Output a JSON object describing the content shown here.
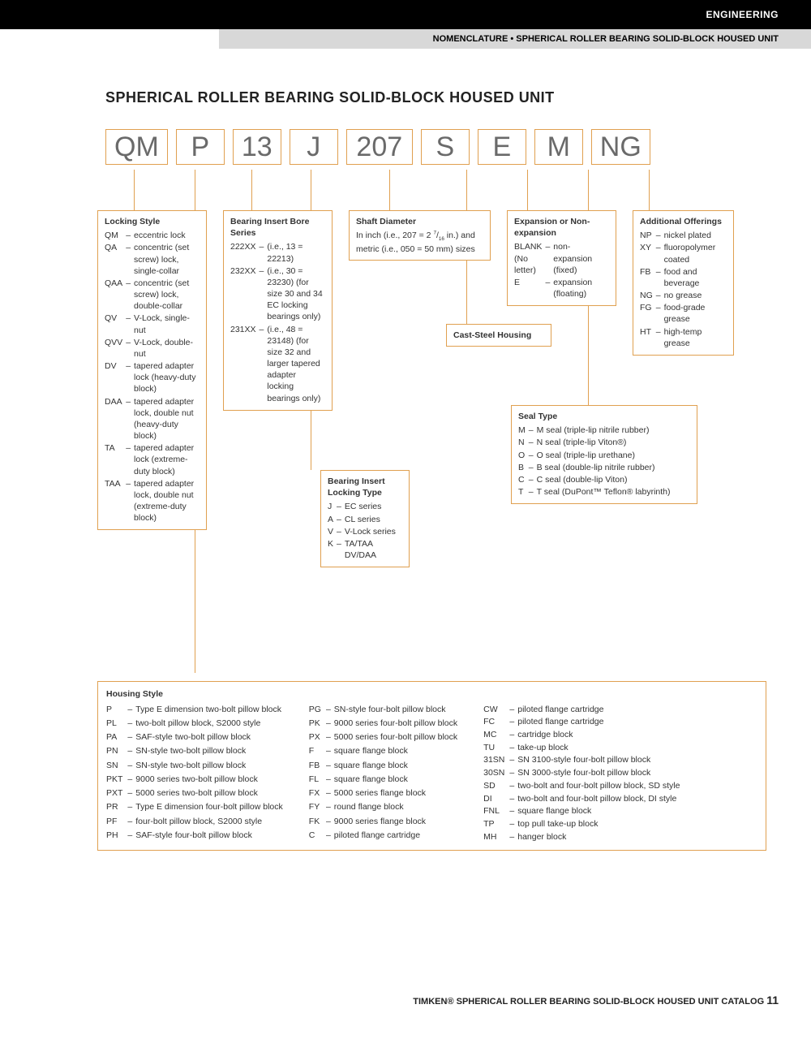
{
  "header": {
    "category": "ENGINEERING",
    "subtitle": "NOMENCLATURE • SPHERICAL ROLLER BEARING SOLID-BLOCK HOUSED UNIT"
  },
  "title": "SPHERICAL ROLLER BEARING SOLID-BLOCK HOUSED UNIT",
  "code_parts": [
    "QM",
    "P",
    "13",
    "J",
    "207",
    "S",
    "E",
    "M",
    "NG"
  ],
  "colors": {
    "box_border": "#e0a050",
    "code_text": "#6a6a6a",
    "black": "#000000",
    "gray_bar": "#d8d8d8"
  },
  "locking_style": {
    "title": "Locking Style",
    "items": [
      {
        "code": "QM",
        "desc": "eccentric lock"
      },
      {
        "code": "QA",
        "desc": "concentric (set screw) lock, single-collar"
      },
      {
        "code": "QAA",
        "desc": "concentric (set screw) lock, double-collar"
      },
      {
        "code": "QV",
        "desc": "V-Lock, single-nut"
      },
      {
        "code": "QVV",
        "desc": "V-Lock, double-nut"
      },
      {
        "code": "DV",
        "desc": "tapered adapter lock (heavy-duty block)"
      },
      {
        "code": "DAA",
        "desc": "tapered adapter lock, double nut (heavy-duty block)"
      },
      {
        "code": "TA",
        "desc": "tapered adapter lock (extreme-duty block)"
      },
      {
        "code": "TAA",
        "desc": "tapered adapter lock, double nut (extreme-duty block)"
      }
    ]
  },
  "bore_series": {
    "title": "Bearing Insert Bore Series",
    "items": [
      {
        "code": "222XX",
        "desc": "(i.e., 13 = 22213)"
      },
      {
        "code": "232XX",
        "desc": "(i.e., 30 = 23230) (for size 30 and 34 EC locking bearings only)"
      },
      {
        "code": "231XX",
        "desc": "(i.e., 48 = 23148) (for size 32 and larger tapered adapter locking bearings only)"
      }
    ]
  },
  "locking_type": {
    "title": "Bearing Insert Locking Type",
    "items": [
      {
        "code": "J",
        "desc": "EC series"
      },
      {
        "code": "A",
        "desc": "CL series"
      },
      {
        "code": "V",
        "desc": "V-Lock series"
      },
      {
        "code": "K",
        "desc": "TA/TAA DV/DAA"
      }
    ]
  },
  "shaft_diameter": {
    "title": "Shaft Diameter",
    "desc": "In inch (i.e., 207 = 2 7/16 in.) and metric (i.e., 050 = 50 mm) sizes"
  },
  "cast_steel": "Cast-Steel Housing",
  "expansion": {
    "title": "Expansion or Non-expansion",
    "items": [
      {
        "code": "BLANK (No letter)",
        "desc": "non-expansion (fixed)"
      },
      {
        "code": "E",
        "desc": "expansion (floating)"
      }
    ]
  },
  "seal_type": {
    "title": "Seal Type",
    "items": [
      {
        "code": "M",
        "desc": "M seal (triple-lip nitrile rubber)"
      },
      {
        "code": "N",
        "desc": "N seal (triple-lip Viton®)"
      },
      {
        "code": "O",
        "desc": "O seal (triple-lip urethane)"
      },
      {
        "code": "B",
        "desc": "B seal (double-lip nitrile rubber)"
      },
      {
        "code": "C",
        "desc": "C seal (double-lip Viton)"
      },
      {
        "code": "T",
        "desc": "T seal (DuPont™ Teflon® labyrinth)"
      }
    ]
  },
  "additional": {
    "title": "Additional Offerings",
    "items": [
      {
        "code": "NP",
        "desc": "nickel plated"
      },
      {
        "code": "XY",
        "desc": "fluoropolymer coated"
      },
      {
        "code": "FB",
        "desc": "food and beverage"
      },
      {
        "code": "NG",
        "desc": "no grease"
      },
      {
        "code": "FG",
        "desc": "food-grade grease"
      },
      {
        "code": "HT",
        "desc": "high-temp grease"
      }
    ]
  },
  "housing": {
    "title": "Housing Style",
    "col1": [
      {
        "code": "P",
        "desc": "Type E dimension two-bolt pillow block"
      },
      {
        "code": "PL",
        "desc": "two-bolt pillow block, S2000 style"
      },
      {
        "code": "PA",
        "desc": "SAF-style two-bolt pillow block"
      },
      {
        "code": "PN",
        "desc": "SN-style two-bolt pillow block"
      },
      {
        "code": "SN",
        "desc": "SN-style two-bolt pillow block"
      },
      {
        "code": "PKT",
        "desc": "9000 series two-bolt pillow block"
      },
      {
        "code": "PXT",
        "desc": "5000 series two-bolt pillow block"
      },
      {
        "code": "PR",
        "desc": "Type E dimension four-bolt pillow block"
      },
      {
        "code": "PF",
        "desc": "four-bolt pillow block, S2000 style"
      },
      {
        "code": "PH",
        "desc": "SAF-style four-bolt pillow block"
      }
    ],
    "col2": [
      {
        "code": "PG",
        "desc": "SN-style four-bolt pillow block"
      },
      {
        "code": "PK",
        "desc": "9000 series four-bolt pillow block"
      },
      {
        "code": "PX",
        "desc": "5000 series four-bolt pillow block"
      },
      {
        "code": "F",
        "desc": "square flange block"
      },
      {
        "code": "FB",
        "desc": "square flange block"
      },
      {
        "code": "FL",
        "desc": "square flange block"
      },
      {
        "code": "FX",
        "desc": "5000 series flange block"
      },
      {
        "code": "FY",
        "desc": "round flange block"
      },
      {
        "code": "FK",
        "desc": "9000 series flange block"
      },
      {
        "code": "C",
        "desc": "piloted flange cartridge"
      }
    ],
    "col3": [
      {
        "code": "CW",
        "desc": "piloted flange cartridge"
      },
      {
        "code": "FC",
        "desc": "piloted flange cartridge"
      },
      {
        "code": "MC",
        "desc": "cartridge block"
      },
      {
        "code": "TU",
        "desc": "take-up block"
      },
      {
        "code": "31SN",
        "desc": "SN 3100-style four-bolt pillow block"
      },
      {
        "code": "30SN",
        "desc": "SN 3000-style four-bolt pillow block"
      },
      {
        "code": "SD",
        "desc": "two-bolt and four-bolt pillow block, SD style"
      },
      {
        "code": "DI",
        "desc": "two-bolt and four-bolt pillow block, DI style"
      },
      {
        "code": "FNL",
        "desc": "square flange block"
      },
      {
        "code": "TP",
        "desc": "top pull take-up block"
      },
      {
        "code": "MH",
        "desc": "hanger block"
      }
    ]
  },
  "footer": {
    "brand": "TIMKEN®",
    "text": "SPHERICAL ROLLER BEARING SOLID-BLOCK HOUSED UNIT CATALOG",
    "page": "11"
  }
}
